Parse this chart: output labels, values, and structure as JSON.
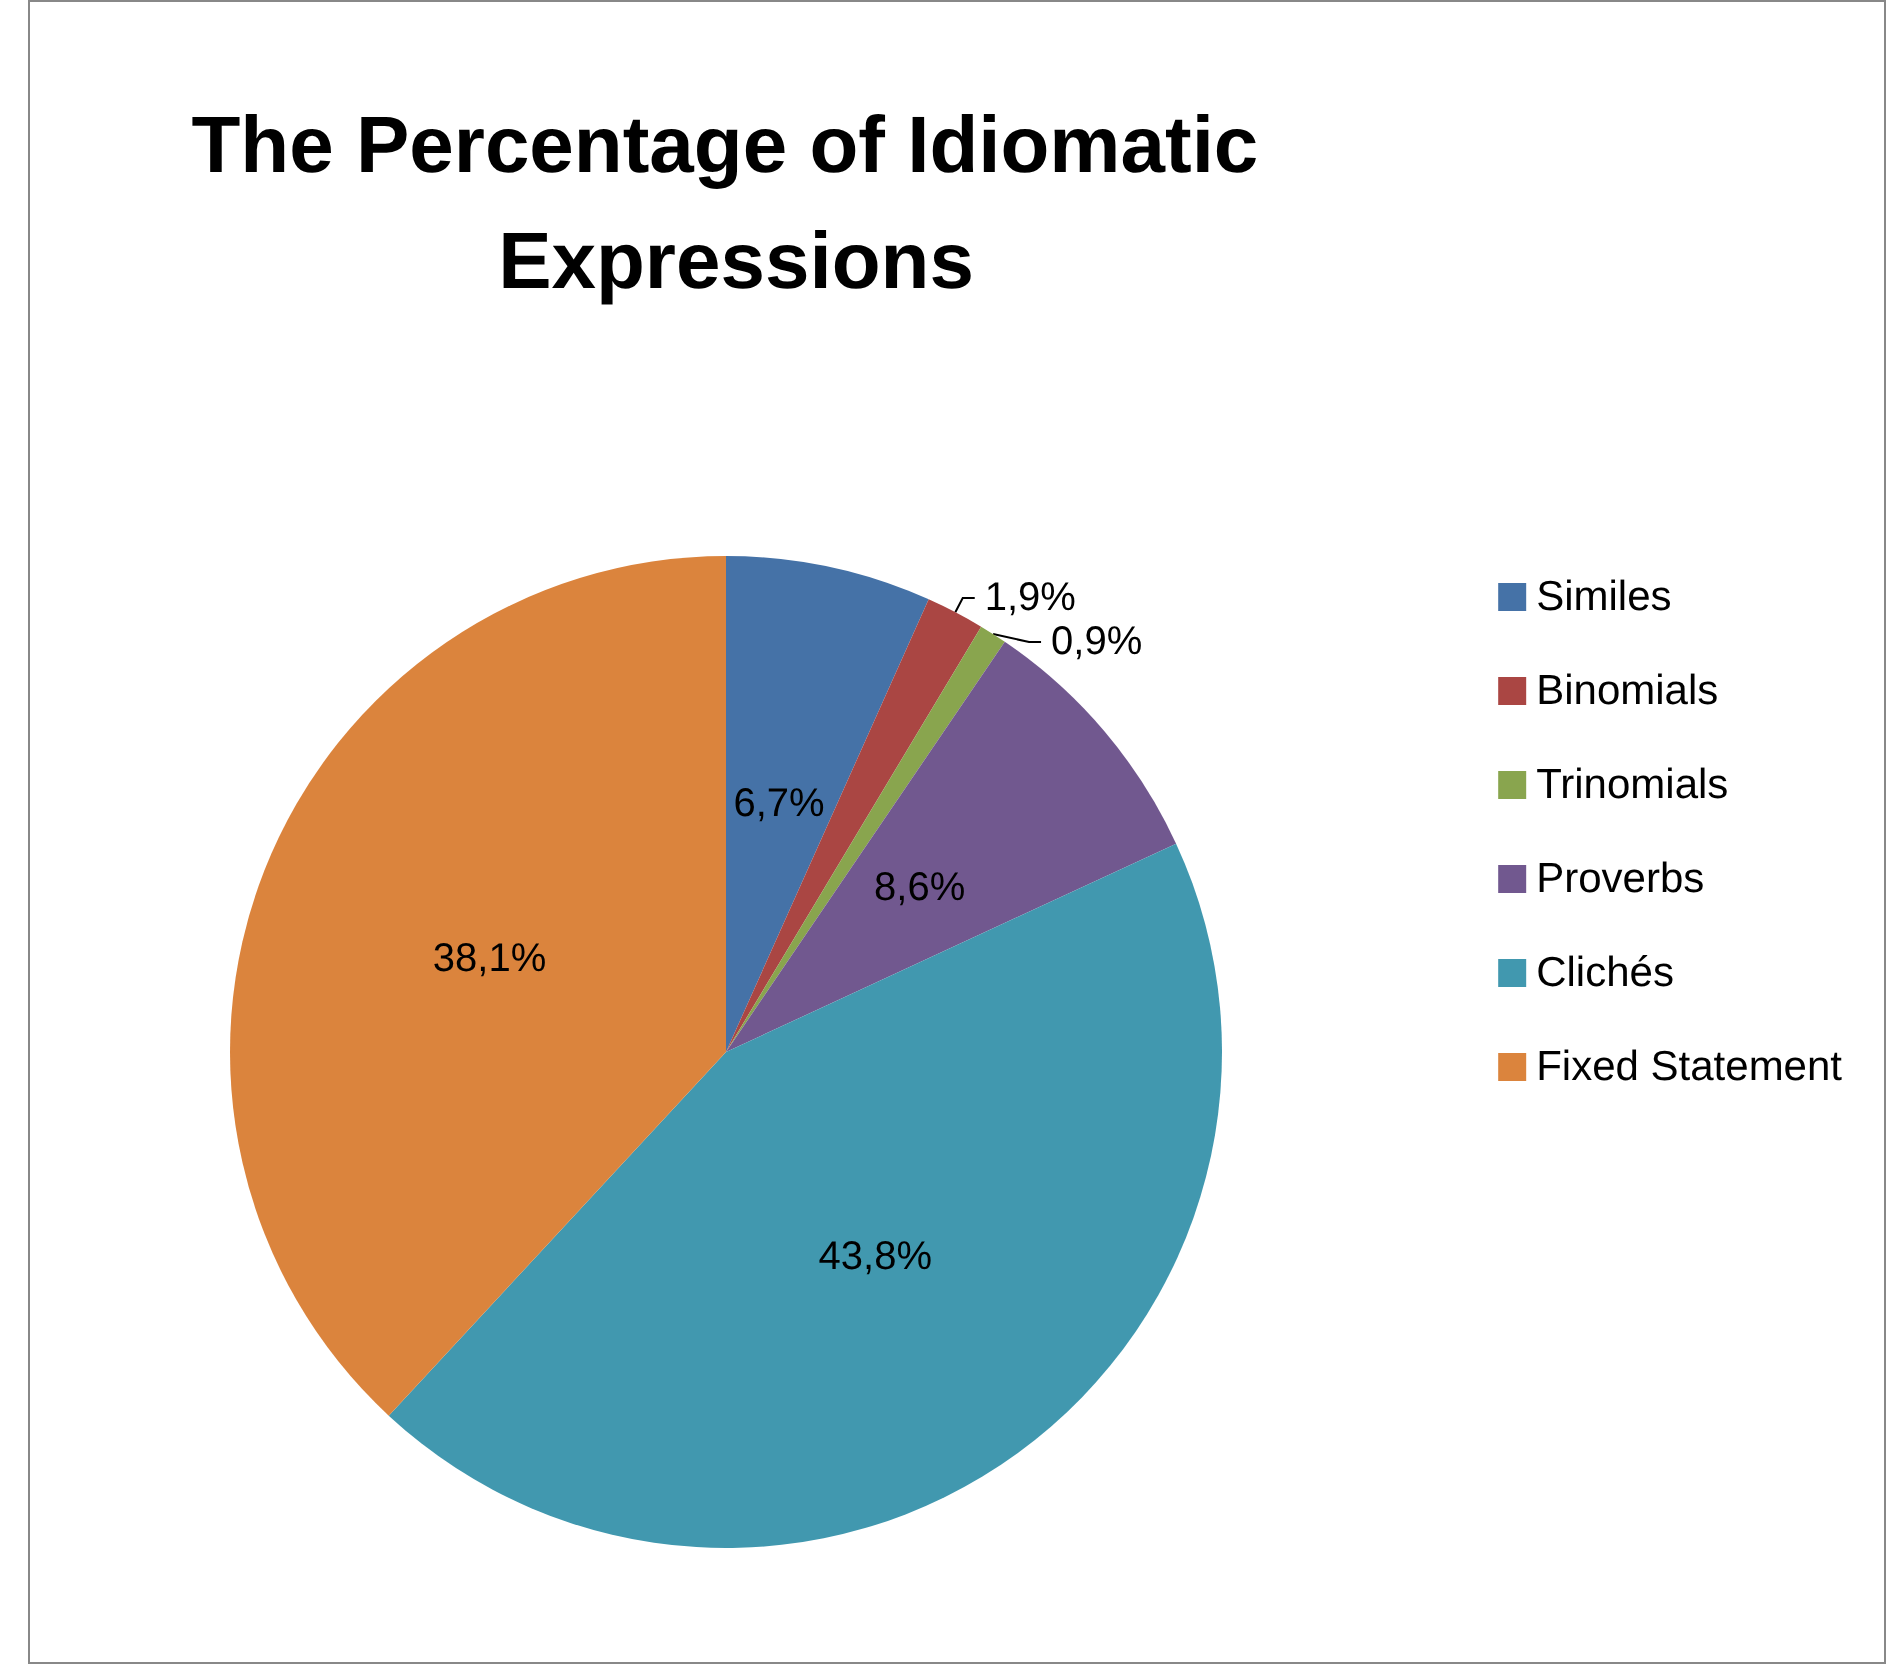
{
  "chart_data": {
    "type": "pie",
    "title": "The Percentage of Idiomatic Expressions",
    "categories": [
      "Similes",
      "Binomials",
      "Trinomials",
      "Proverbs",
      "Clichés",
      "Fixed Statement"
    ],
    "values": [
      6.7,
      1.9,
      0.9,
      8.6,
      43.8,
      38.1
    ],
    "colors": [
      "#4572a7",
      "#aa4643",
      "#89a54e",
      "#71588f",
      "#4198af",
      "#db843d"
    ],
    "value_labels": [
      "6,7%",
      "1,9%",
      "0,9%",
      "8,6%",
      "43,8%",
      "38,1%"
    ],
    "legend": "right"
  }
}
